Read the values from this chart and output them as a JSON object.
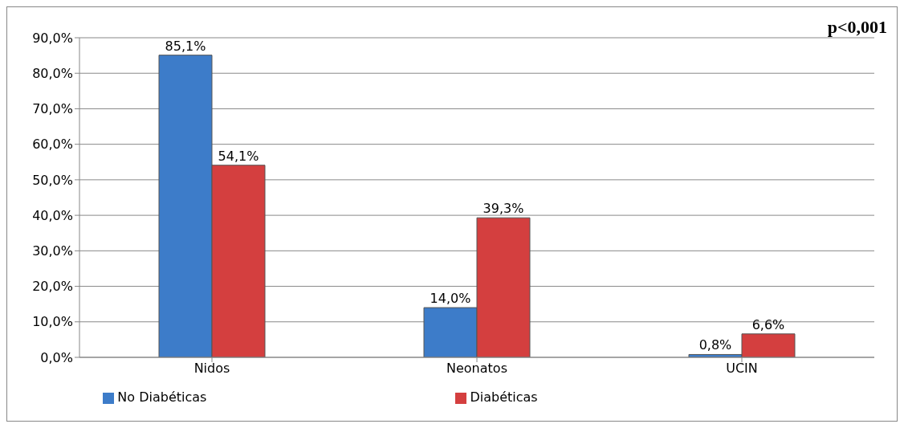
{
  "chart_data": {
    "type": "bar",
    "categories": [
      "Nidos",
      "Neonatos",
      "UCIN"
    ],
    "series": [
      {
        "name": "No Diabéticas",
        "color": "#3d7cc9",
        "values": [
          85.1,
          14.0,
          0.8
        ],
        "value_labels": [
          "85,1%",
          "14,0%",
          "0,8%"
        ]
      },
      {
        "name": "Diabéticas",
        "color": "#d43f3f",
        "values": [
          54.1,
          39.3,
          6.6
        ],
        "value_labels": [
          "54,1%",
          "39,3%",
          "6,6%"
        ]
      }
    ],
    "ylim": [
      0,
      90
    ],
    "yticks": [
      {
        "value": 0,
        "label": "0,0%"
      },
      {
        "value": 10,
        "label": "10,0%"
      },
      {
        "value": 20,
        "label": "20,0%"
      },
      {
        "value": 30,
        "label": "30,0%"
      },
      {
        "value": 40,
        "label": "40,0%"
      },
      {
        "value": 50,
        "label": "50,0%"
      },
      {
        "value": 60,
        "label": "60,0%"
      },
      {
        "value": 70,
        "label": "70,0%"
      },
      {
        "value": 80,
        "label": "80,0%"
      },
      {
        "value": 90,
        "label": "90,0%"
      }
    ],
    "grid": "y",
    "legend": "bottom",
    "annotations": [
      "p<0,001"
    ]
  }
}
